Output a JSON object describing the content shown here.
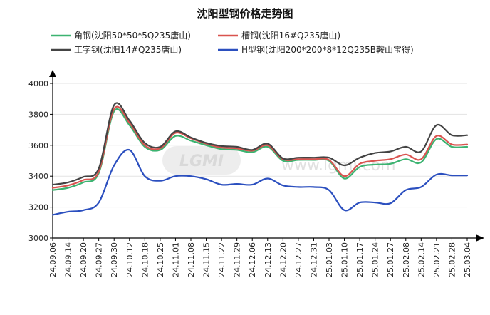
{
  "chart_data": {
    "type": "line",
    "title": "沈阳型钢价格走势图",
    "xlabel": "",
    "ylabel": "",
    "ylim": [
      3000,
      4000
    ],
    "yticks": [
      3000,
      3200,
      3400,
      3600,
      3800,
      4000
    ],
    "grid": true,
    "legend_position": "top",
    "categories": [
      "24.09.06",
      "24.09.14",
      "24.09.20",
      "24.09.27",
      "24.09.30",
      "24.10.12",
      "24.10.18",
      "24.10.25",
      "24.11.01",
      "24.11.08",
      "24.11.15",
      "24.11.22",
      "24.11.29",
      "24.12.06",
      "24.12.13",
      "24.12.20",
      "24.12.27",
      "24.12.31",
      "25.01.03",
      "25.01.10",
      "25.01.17",
      "25.01.24",
      "25.01.27",
      "25.02.08",
      "25.02.14",
      "25.02.21",
      "25.02.28",
      "25.03.04"
    ],
    "series": [
      {
        "name": "角钢(沈阳50*50*5Q235唐山)",
        "color": "#3cb371",
        "values": [
          3310,
          3325,
          3360,
          3420,
          3820,
          3730,
          3590,
          3570,
          3660,
          3630,
          3600,
          3575,
          3570,
          3555,
          3590,
          3500,
          3505,
          3505,
          3500,
          3385,
          3460,
          3475,
          3480,
          3510,
          3490,
          3640,
          3590,
          3590
        ]
      },
      {
        "name": "槽钢(沈阳16#Q235唐山)",
        "color": "#d9534f",
        "values": [
          3325,
          3340,
          3375,
          3430,
          3835,
          3745,
          3600,
          3580,
          3680,
          3645,
          3610,
          3585,
          3580,
          3565,
          3600,
          3510,
          3510,
          3510,
          3505,
          3400,
          3480,
          3500,
          3510,
          3540,
          3510,
          3660,
          3605,
          3605
        ]
      },
      {
        "name": "工字钢(沈阳14#Q235唐山)",
        "color": "#444444",
        "values": [
          3345,
          3360,
          3395,
          3450,
          3860,
          3760,
          3615,
          3590,
          3690,
          3650,
          3615,
          3595,
          3590,
          3570,
          3610,
          3515,
          3520,
          3520,
          3520,
          3470,
          3520,
          3550,
          3560,
          3590,
          3560,
          3730,
          3665,
          3665
        ]
      },
      {
        "name": "H型钢(沈阳200*200*8*12Q235B鞍山宝得)",
        "color": "#2b4fbf",
        "values": [
          3150,
          3170,
          3180,
          3230,
          3470,
          3570,
          3400,
          3370,
          3400,
          3400,
          3380,
          3345,
          3350,
          3345,
          3385,
          3340,
          3330,
          3330,
          3310,
          3180,
          3230,
          3230,
          3225,
          3310,
          3330,
          3410,
          3405,
          3405
        ]
      }
    ]
  },
  "watermark": {
    "logo_text": "LGMI",
    "url_text": "www.lgmi.com"
  }
}
